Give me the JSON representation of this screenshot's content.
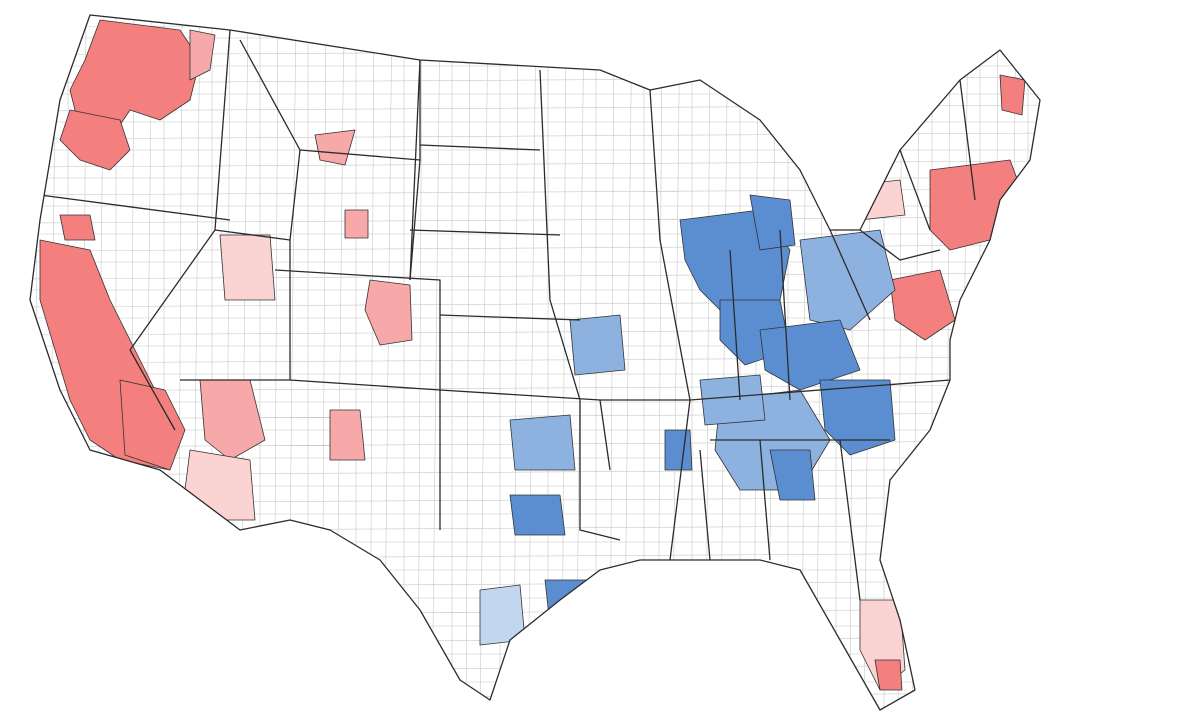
{
  "map": {
    "legend_text": "",
    "colors": {
      "background": "#ffffff",
      "county_border": "#c8c8c8",
      "state_border": "#2b2b2b",
      "red_strong": "#f47f7f",
      "red_medium": "#f7a8a8",
      "red_light": "#fbd3d3",
      "red_faint": "#fdecec",
      "blue_strong": "#5b8ed1",
      "blue_medium": "#8db2e0",
      "blue_light": "#c2d6ef",
      "blue_faint": "#e3ecf8"
    },
    "regions": [
      {
        "name": "west-coast-california",
        "shade": "red_strong"
      },
      {
        "name": "pacific-northwest",
        "shade": "red_strong"
      },
      {
        "name": "southern-arizona",
        "shade": "red_medium"
      },
      {
        "name": "nevada-utah-pockets",
        "shade": "red_light"
      },
      {
        "name": "colorado-front-range",
        "shade": "red_medium"
      },
      {
        "name": "northeast-corridor",
        "shade": "red_strong"
      },
      {
        "name": "florida-pockets",
        "shade": "red_light"
      },
      {
        "name": "ohio-valley",
        "shade": "blue_strong"
      },
      {
        "name": "appalachia",
        "shade": "blue_medium"
      },
      {
        "name": "southeast-blue",
        "shade": "blue_medium"
      },
      {
        "name": "texas-blue",
        "shade": "blue_strong"
      },
      {
        "name": "gulf-coast-mixed",
        "shade": "blue_light"
      }
    ]
  }
}
